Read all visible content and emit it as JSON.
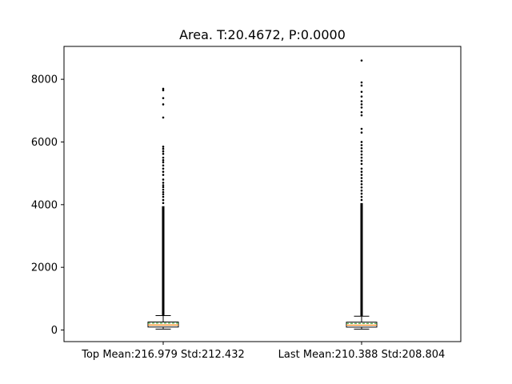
{
  "chart_data": {
    "type": "box",
    "title": "Area. T:20.4672, P:0.0000",
    "xlabel": "",
    "ylabel": "",
    "ylim": [
      -370,
      9050
    ],
    "yticks": [
      0,
      2000,
      4000,
      6000,
      8000
    ],
    "grid": false,
    "categories": [
      "Top Mean:216.979 Std:212.432",
      "Last Mean:210.388 Std:208.804"
    ],
    "boxes": [
      {
        "whisker_low": 30,
        "q1": 95,
        "median": 160,
        "mean": 216.979,
        "q3": 255,
        "whisker_high": 460,
        "outlier_dense_range": [
          460,
          3950
        ],
        "outliers": [
          4050,
          4150,
          4250,
          4330,
          4400,
          4480,
          4560,
          4620,
          4700,
          4800,
          4950,
          5050,
          5150,
          5250,
          5350,
          5420,
          5500,
          5620,
          5700,
          5780,
          5850,
          6780,
          7200,
          7400,
          7650,
          7700
        ]
      },
      {
        "whisker_low": 30,
        "q1": 92,
        "median": 155,
        "mean": 210.388,
        "q3": 250,
        "whisker_high": 440,
        "outlier_dense_range": [
          440,
          4050
        ],
        "outliers": [
          4150,
          4250,
          4350,
          4450,
          4550,
          4650,
          4750,
          4850,
          4950,
          5050,
          5150,
          5300,
          5400,
          5500,
          5600,
          5700,
          5800,
          5900,
          6000,
          6300,
          6420,
          6850,
          6950,
          7100,
          7200,
          7300,
          7450,
          7600,
          7800,
          7900,
          8600
        ]
      }
    ],
    "colors": {
      "median": "#ff7f0e",
      "mean": "#2ca02c",
      "box": "#000000",
      "outlier": "#000000"
    }
  }
}
